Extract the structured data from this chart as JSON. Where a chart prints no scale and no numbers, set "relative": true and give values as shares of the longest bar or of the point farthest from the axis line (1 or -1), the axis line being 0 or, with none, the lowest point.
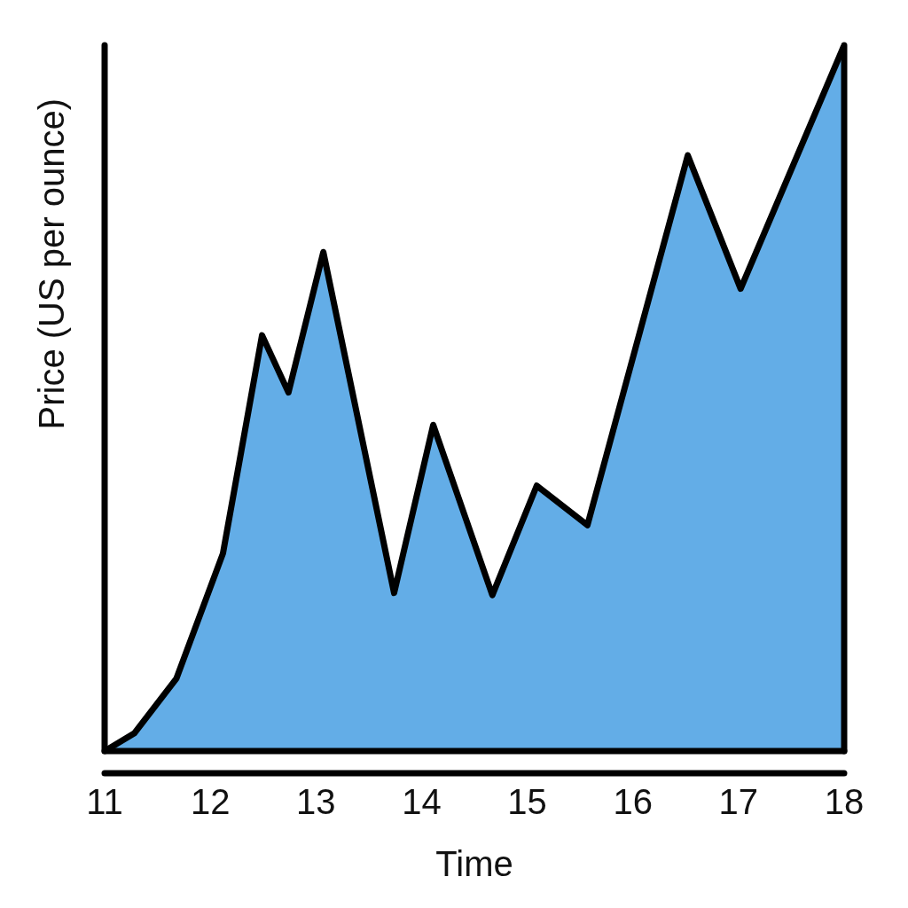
{
  "chart_data": {
    "type": "area",
    "xlabel": "Time",
    "ylabel": "Price (US per ounce)",
    "relative": true,
    "x": [
      11,
      11.28,
      11.68,
      12.12,
      12.49,
      12.74,
      13.07,
      13.74,
      14.11,
      14.67,
      15.09,
      15.57,
      16.52,
      17.02,
      18
    ],
    "values": [
      0,
      0.025,
      0.103,
      0.28,
      0.589,
      0.508,
      0.707,
      0.224,
      0.462,
      0.221,
      0.376,
      0.32,
      0.844,
      0.655,
      1
    ],
    "color": "#63ade7",
    "xlim": [
      11,
      18
    ],
    "xticks": [
      11,
      12,
      13,
      14,
      15,
      16,
      17,
      18
    ]
  }
}
